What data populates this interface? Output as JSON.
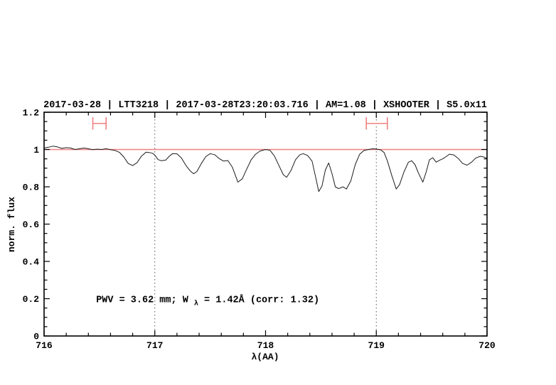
{
  "chart_data": {
    "type": "line",
    "title": "2017-03-28 | LTT3218 | 2017-03-28T23:20:03.716 | AM=1.08 | XSHOOTER | S5.0x11",
    "xlabel": "λ(AA)",
    "ylabel": "norm. flux",
    "xlim": [
      716,
      720
    ],
    "ylim": [
      0,
      1.2
    ],
    "x_tick_values": [
      716,
      717,
      718,
      719,
      720
    ],
    "x_tick_labels": [
      "716",
      "717",
      "718",
      "719",
      "720"
    ],
    "x_minor_step": 0.2,
    "y_tick_values": [
      0,
      0.2,
      0.4,
      0.6,
      0.8,
      1,
      1.2
    ],
    "y_tick_labels": [
      "0",
      "0.2",
      "0.4",
      "0.6",
      "0.8",
      "1",
      "1.2"
    ],
    "y_minor_step": 0.05,
    "grid": "off",
    "legend": "none",
    "title_color": "#2222cc",
    "vlines": {
      "x": [
        717,
        719
      ],
      "style": "dotted",
      "color": "#555555"
    },
    "continuum_line": {
      "y": 1.0,
      "color": "#f08080"
    },
    "band_markers": {
      "color": "#f08080",
      "y": 1.14,
      "cap_half_height": 0.033,
      "ranges": [
        {
          "x1": 716.44,
          "x2": 716.56
        },
        {
          "x1": 718.91,
          "x2": 719.1
        }
      ]
    },
    "annotation": {
      "pre": "PWV = 3.62 mm; W",
      "sub": "λ",
      "post": " = 1.42Å (corr: 1.32)",
      "x": 716.47,
      "y": 0.2,
      "color": "#2222cc"
    },
    "series": [
      {
        "name": "spectrum",
        "color": "#1c1c1c",
        "points": [
          [
            716.0,
            1.008
          ],
          [
            716.04,
            1.012
          ],
          [
            716.08,
            1.018
          ],
          [
            716.12,
            1.014
          ],
          [
            716.16,
            1.006
          ],
          [
            716.2,
            1.01
          ],
          [
            716.24,
            1.008
          ],
          [
            716.28,
            1.0
          ],
          [
            716.32,
            1.004
          ],
          [
            716.36,
            1.008
          ],
          [
            716.4,
            1.004
          ],
          [
            716.44,
            0.999
          ],
          [
            716.48,
            1.002
          ],
          [
            716.52,
            1.0
          ],
          [
            716.56,
            1.004
          ],
          [
            716.6,
            0.999
          ],
          [
            716.64,
            0.995
          ],
          [
            716.68,
            0.985
          ],
          [
            716.72,
            0.96
          ],
          [
            716.76,
            0.925
          ],
          [
            716.8,
            0.914
          ],
          [
            716.84,
            0.93
          ],
          [
            716.88,
            0.965
          ],
          [
            716.92,
            0.986
          ],
          [
            716.95,
            0.984
          ],
          [
            716.98,
            0.98
          ],
          [
            717.0,
            0.97
          ],
          [
            717.03,
            0.946
          ],
          [
            717.06,
            0.94
          ],
          [
            717.1,
            0.944
          ],
          [
            717.13,
            0.964
          ],
          [
            717.16,
            0.978
          ],
          [
            717.2,
            0.977
          ],
          [
            717.24,
            0.955
          ],
          [
            717.28,
            0.915
          ],
          [
            717.32,
            0.885
          ],
          [
            717.35,
            0.87
          ],
          [
            717.38,
            0.882
          ],
          [
            717.42,
            0.925
          ],
          [
            717.46,
            0.962
          ],
          [
            717.5,
            0.978
          ],
          [
            717.54,
            0.972
          ],
          [
            717.58,
            0.952
          ],
          [
            717.62,
            0.938
          ],
          [
            717.66,
            0.941
          ],
          [
            717.7,
            0.905
          ],
          [
            717.75,
            0.825
          ],
          [
            717.79,
            0.843
          ],
          [
            717.83,
            0.895
          ],
          [
            717.87,
            0.945
          ],
          [
            717.91,
            0.975
          ],
          [
            717.95,
            0.992
          ],
          [
            718.0,
            1.0
          ],
          [
            718.04,
            0.996
          ],
          [
            718.08,
            0.965
          ],
          [
            718.12,
            0.915
          ],
          [
            718.16,
            0.865
          ],
          [
            718.19,
            0.851
          ],
          [
            718.23,
            0.888
          ],
          [
            718.27,
            0.945
          ],
          [
            718.31,
            0.972
          ],
          [
            718.34,
            0.978
          ],
          [
            718.38,
            0.968
          ],
          [
            718.42,
            0.938
          ],
          [
            718.45,
            0.858
          ],
          [
            718.48,
            0.775
          ],
          [
            718.51,
            0.805
          ],
          [
            718.54,
            0.89
          ],
          [
            718.57,
            0.928
          ],
          [
            718.6,
            0.87
          ],
          [
            718.63,
            0.8
          ],
          [
            718.66,
            0.79
          ],
          [
            718.7,
            0.8
          ],
          [
            718.73,
            0.788
          ],
          [
            718.77,
            0.832
          ],
          [
            718.81,
            0.92
          ],
          [
            718.85,
            0.975
          ],
          [
            718.89,
            0.995
          ],
          [
            718.93,
            1.0
          ],
          [
            718.97,
            1.004
          ],
          [
            719.0,
            1.002
          ],
          [
            719.04,
            0.998
          ],
          [
            719.07,
            0.984
          ],
          [
            719.1,
            0.94
          ],
          [
            719.14,
            0.86
          ],
          [
            719.18,
            0.788
          ],
          [
            719.21,
            0.812
          ],
          [
            719.25,
            0.88
          ],
          [
            719.29,
            0.932
          ],
          [
            719.32,
            0.94
          ],
          [
            719.35,
            0.918
          ],
          [
            719.38,
            0.875
          ],
          [
            719.42,
            0.825
          ],
          [
            719.45,
            0.878
          ],
          [
            719.48,
            0.945
          ],
          [
            719.51,
            0.956
          ],
          [
            719.54,
            0.932
          ],
          [
            719.57,
            0.942
          ],
          [
            719.6,
            0.95
          ],
          [
            719.63,
            0.962
          ],
          [
            719.66,
            0.975
          ],
          [
            719.7,
            0.971
          ],
          [
            719.74,
            0.952
          ],
          [
            719.78,
            0.925
          ],
          [
            719.82,
            0.916
          ],
          [
            719.86,
            0.932
          ],
          [
            719.9,
            0.955
          ],
          [
            719.94,
            0.964
          ],
          [
            719.97,
            0.96
          ],
          [
            720.0,
            0.953
          ]
        ]
      }
    ]
  }
}
